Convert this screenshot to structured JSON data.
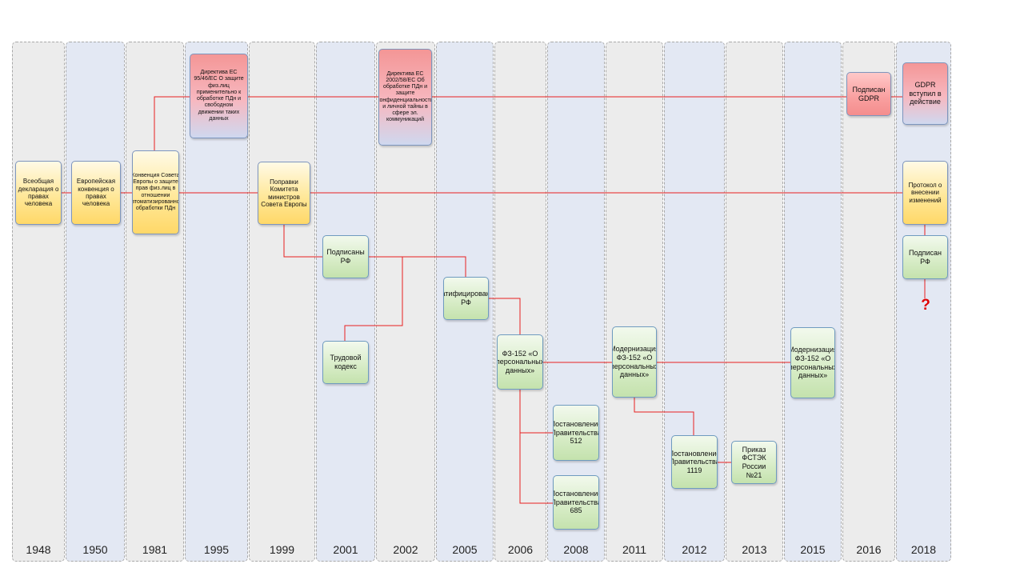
{
  "timeline": {
    "years": [
      "1948",
      "1950",
      "1981",
      "1995",
      "1999",
      "2001",
      "2002",
      "2005",
      "2006",
      "2008",
      "2011",
      "2012",
      "2013",
      "2015",
      "2016",
      "2018"
    ]
  },
  "events": {
    "udhr": "Всеобщая декларация о правах человека",
    "echr": "Европейская конвенция о правах человека",
    "convention108": "Конвенция Совета Европы о защите прав физ.лиц в отношении автоматизированной обработки ПДн",
    "directive95": "Директива ЕС 95/46/ЕС О защите физ.лиц применительно к обработке ПДн и свободном движении таких данных",
    "amendments1999": "Поправки Комитета министров Совета Европы",
    "signed_rf_2001": "Подписаны РФ",
    "labor_code": "Трудовой кодекс",
    "directive2002": "Директива ЕС 2002/58/ЕС Об обработке ПДн и защите конфиденциальности и личной тайны в сфере эл. коммуникаций",
    "ratified": "Ратифицированы РФ",
    "fz152": "ФЗ-152 «О персональных данных»",
    "decree512": "Постановление Правительства 512",
    "decree685": "Постановление Правительства 685",
    "modern2011": "Модернизация ФЗ-152 «О персональных данных»",
    "decree1119": "Постановление Правительства 1119",
    "order21": "Приказ ФСТЭК России №21",
    "modern2015": "Модернизация ФЗ-152 «О персональных данных»",
    "gdpr_signed": "Подписан GDPR",
    "gdpr_effect": "GDPR вступил в действие",
    "protocol": "Протокол о внесении изменений",
    "signed_rf_2018": "Подписан РФ",
    "question": "?"
  },
  "colors": {
    "connector": "#e82020",
    "column_gray": "#ececec",
    "column_blue": "#e3e8f3",
    "box_yellow": "#ffe89a",
    "box_pink": "#f99f9f",
    "box_green": "#d9edc9"
  }
}
